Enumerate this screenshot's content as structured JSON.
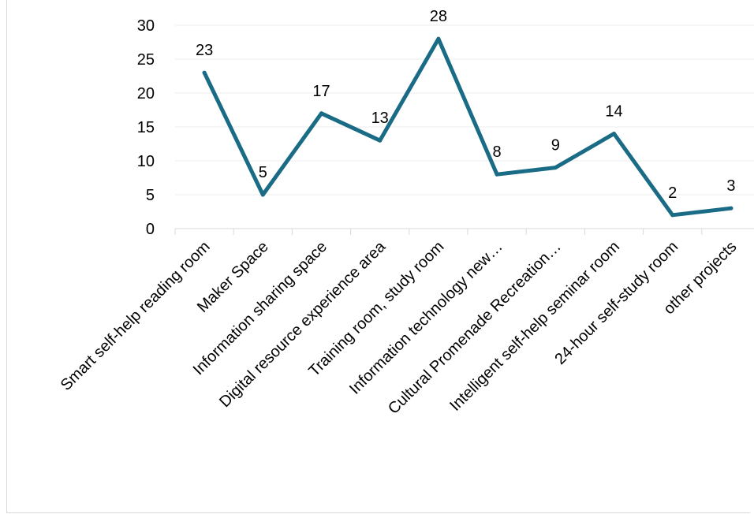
{
  "chart_data": {
    "type": "line",
    "title": "",
    "xlabel": "",
    "ylabel": "",
    "ylim": [
      0,
      30
    ],
    "yticks": [
      0,
      5,
      10,
      15,
      20,
      25,
      30
    ],
    "grid": true,
    "legend": "none",
    "line_color": "#1a6b85",
    "categories": [
      "Smart self-help reading room",
      "Maker Space",
      "Information sharing space",
      "Digital resource experience area",
      "Training room, study room",
      "Information technology new…",
      "Cultural Promenade Recreation…",
      "Intelligent self-help seminar room",
      "24-hour self-study room",
      "other projects"
    ],
    "series": [
      {
        "values": [
          23,
          5,
          17,
          13,
          28,
          8,
          9,
          14,
          2,
          3
        ]
      }
    ]
  }
}
